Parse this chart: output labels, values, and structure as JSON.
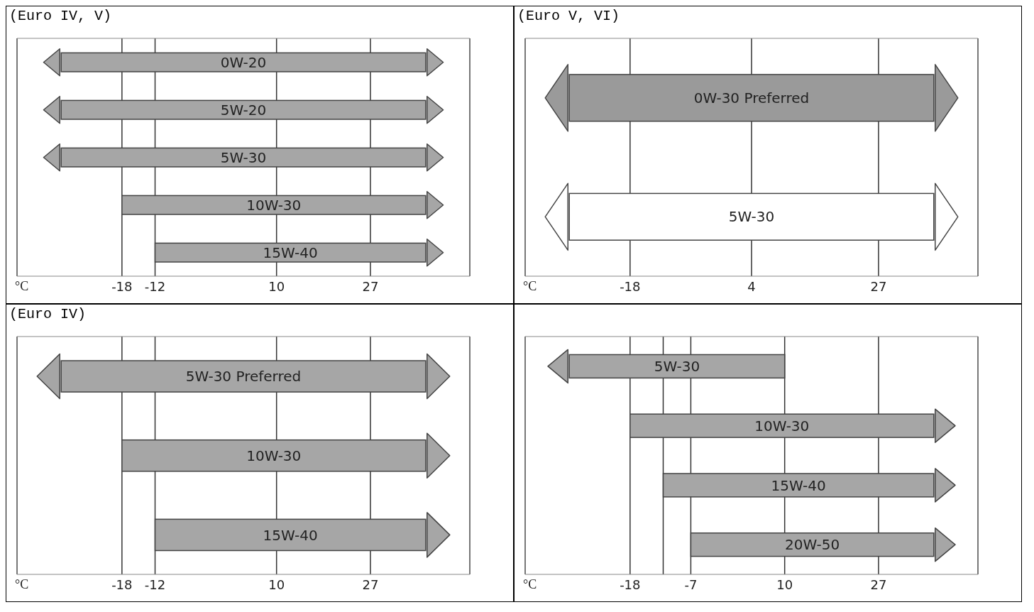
{
  "chart_data": [
    {
      "type": "bar",
      "orientation": "horizontal",
      "title": "(Euro IV, V)",
      "xlabel": "°C",
      "categories": [
        "0W-20",
        "5W-20",
        "5W-30",
        "10W-30",
        "15W-40"
      ],
      "base": [
        -29,
        -29,
        -29,
        -18,
        -12
      ],
      "values": [
        66,
        66,
        66,
        55,
        49
      ],
      "colors": [
        "#a6a6a6",
        "#a6a6a6",
        "#a6a6a6",
        "#a6a6a6",
        "#a6a6a6"
      ],
      "xlim": [
        -37,
        45
      ],
      "xticks": [
        -18,
        -12,
        10,
        27
      ],
      "grid": "x",
      "legend": false
    },
    {
      "type": "bar",
      "orientation": "horizontal",
      "title": "(Euro V, VI)",
      "xlabel": "°C",
      "categories": [
        "0W-30 Preferred",
        "5W-30"
      ],
      "base": [
        -29,
        -29
      ],
      "values": [
        66,
        66
      ],
      "colors": [
        "#9a9a9a",
        "#ffffff"
      ],
      "xlim": [
        -37,
        45
      ],
      "xticks": [
        -18,
        4,
        27
      ],
      "grid": "x",
      "legend": false
    },
    {
      "type": "bar",
      "orientation": "horizontal",
      "title": "(Euro IV)",
      "xlabel": "°C",
      "categories": [
        "5W-30 Preferred",
        "10W-30",
        "15W-40"
      ],
      "base": [
        -29,
        -18,
        -12
      ],
      "values": [
        66,
        55,
        49
      ],
      "colors": [
        "#a6a6a6",
        "#a6a6a6",
        "#a6a6a6"
      ],
      "xlim": [
        -37,
        45
      ],
      "xticks": [
        -18,
        -12,
        10,
        27
      ],
      "grid": "x",
      "legend": false
    },
    {
      "type": "bar",
      "orientation": "horizontal",
      "xlabel": "°C",
      "categories": [
        "5W-30",
        "10W-30",
        "15W-40",
        "20W-50"
      ],
      "base": [
        -29,
        -18,
        -12,
        -7
      ],
      "values": [
        39,
        55,
        49,
        44
      ],
      "colors": [
        "#a6a6a6",
        "#a6a6a6",
        "#a6a6a6",
        "#a6a6a6"
      ],
      "xlim": [
        -37,
        45
      ],
      "xticks": [
        -18,
        {
          "value": -12,
          "label": null
        },
        -7,
        10,
        27
      ],
      "grid": "x",
      "legend": false
    }
  ]
}
